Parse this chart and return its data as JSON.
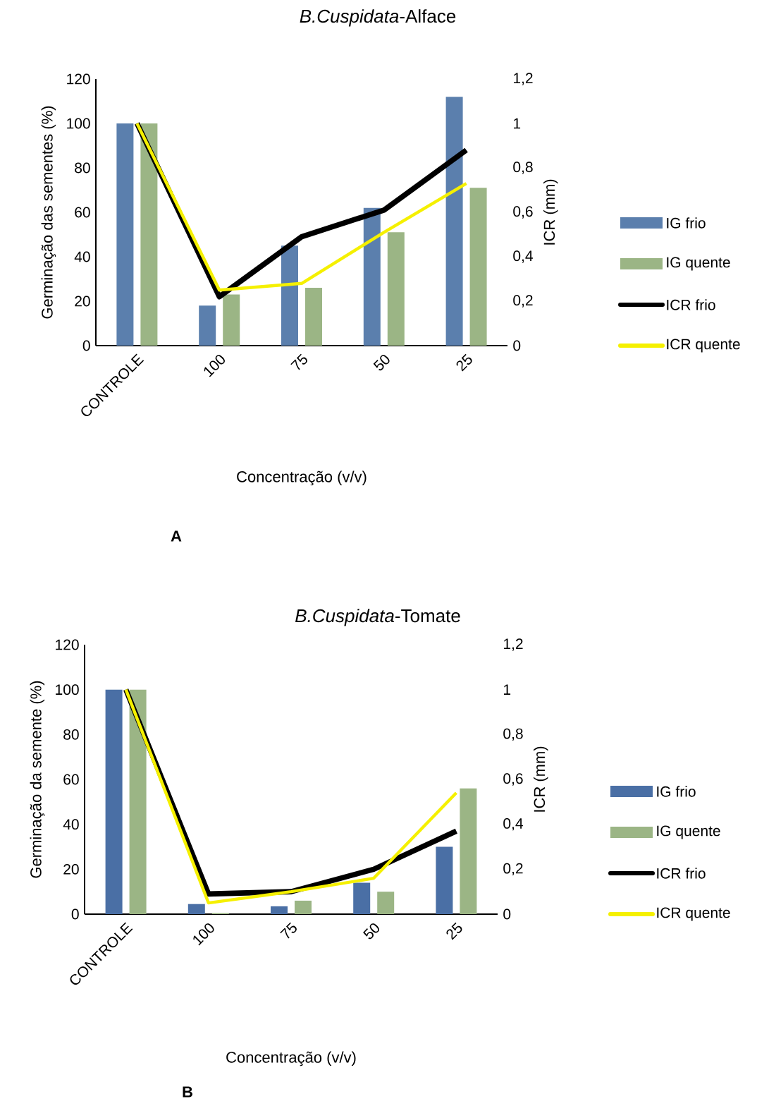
{
  "chart_data": [
    {
      "type": "bar",
      "title": "*B.Cuspidata*-Alface",
      "xlabel": "Concentração (v/v)",
      "ylabel": "Germinação das sementes (%)",
      "y2label": "ICR (mm)",
      "annotations": [
        "A"
      ],
      "categories": [
        "CONTROLE",
        "100",
        "75",
        "50",
        "25"
      ],
      "series": [
        {
          "name": "IG frio",
          "color": "#5b7fad",
          "values": [
            100,
            18,
            45,
            62,
            112
          ]
        },
        {
          "name": "IG quente",
          "color": "#9bb585",
          "values": [
            100,
            23,
            26,
            51,
            71
          ]
        },
        {
          "name": "ICR frio",
          "type": "line",
          "axis": "y2",
          "color": "#000000",
          "values": [
            1,
            0.22,
            0.49,
            0.61,
            0.88
          ]
        },
        {
          "name": "ICR quente",
          "type": "line",
          "axis": "y2",
          "color": "#f5f000",
          "values": [
            1,
            0.25,
            0.28,
            0.51,
            0.73
          ]
        }
      ],
      "ylim": [
        0,
        120
      ],
      "yticks": [
        0,
        20,
        40,
        60,
        80,
        100,
        120
      ],
      "y2lim": [
        0,
        1.2
      ],
      "y2ticks": [
        0,
        {
          "value": 0.2,
          "label": "0,2"
        },
        {
          "value": 0.4,
          "label": "0,4"
        },
        {
          "value": 0.6,
          "label": "0,6"
        },
        {
          "value": 0.8,
          "label": "0,8"
        },
        1,
        {
          "value": 1.2,
          "label": "1,2"
        }
      ],
      "legend": "right"
    },
    {
      "type": "bar",
      "title": "*B.Cuspidata*-Tomate",
      "xlabel": "Concentração (v/v)",
      "ylabel": "Germinação da semente (%)",
      "y2label": "ICR (mm)",
      "annotations": [
        "B"
      ],
      "categories": [
        "CONTROLE",
        "100",
        "75",
        "50",
        "25"
      ],
      "series": [
        {
          "name": "IG frio",
          "color": "#4a6fa5",
          "values": [
            100,
            4.5,
            3.5,
            14,
            30
          ]
        },
        {
          "name": "IG quente",
          "color": "#9bb585",
          "values": [
            100,
            0.5,
            6,
            10,
            56
          ]
        },
        {
          "name": "ICR frio",
          "type": "line",
          "axis": "y2",
          "color": "#000000",
          "values": [
            1,
            0.09,
            0.1,
            0.2,
            0.37
          ]
        },
        {
          "name": "ICR quente",
          "type": "line",
          "axis": "y2",
          "color": "#f5f000",
          "values": [
            1,
            0.05,
            0.1,
            0.16,
            0.54
          ]
        }
      ],
      "ylim": [
        0,
        120
      ],
      "yticks": [
        0,
        20,
        40,
        60,
        80,
        100,
        120
      ],
      "y2lim": [
        0,
        1.2
      ],
      "y2ticks": [
        0,
        {
          "value": 0.2,
          "label": "0,2"
        },
        {
          "value": 0.4,
          "label": "0,4"
        },
        {
          "value": 0.6,
          "label": "0,6"
        },
        {
          "value": 0.8,
          "label": "0,8"
        },
        1,
        {
          "value": 1.2,
          "label": "1,2"
        }
      ],
      "legend": "right"
    }
  ]
}
